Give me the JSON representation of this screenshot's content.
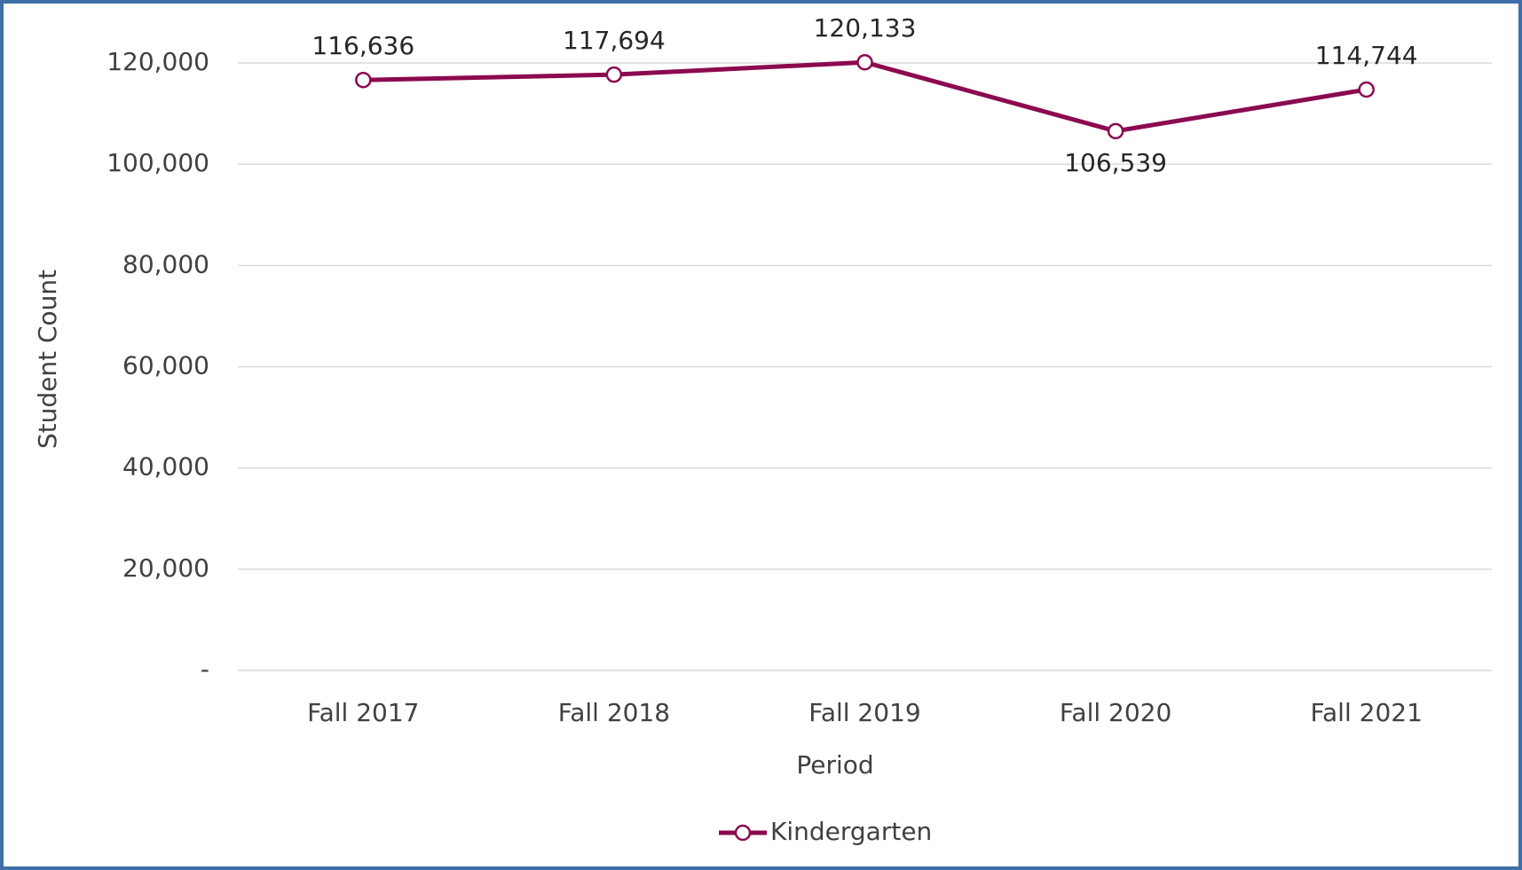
{
  "chart_data": {
    "type": "line",
    "x_label": "Period",
    "y_label": "Student Count",
    "categories": [
      "Fall 2017",
      "Fall 2018",
      "Fall 2019",
      "Fall 2020",
      "Fall 2021"
    ],
    "series": [
      {
        "name": "Kindergarten",
        "color": "#8b0a50",
        "values": [
          116636,
          117694,
          120133,
          106539,
          114744
        ],
        "value_labels": [
          "116,636",
          "117,694",
          "120,133",
          "106,539",
          "114,744"
        ]
      }
    ],
    "ylim": [
      0,
      120000
    ],
    "yticks": [
      {
        "value": 0,
        "label": "-"
      },
      {
        "value": 20000,
        "label": "20,000"
      },
      {
        "value": 40000,
        "label": "40,000"
      },
      {
        "value": 60000,
        "label": "60,000"
      },
      {
        "value": 80000,
        "label": "80,000"
      },
      {
        "value": 100000,
        "label": "100,000"
      },
      {
        "value": 120000,
        "label": "120,000"
      }
    ],
    "grid": true,
    "legend": "bottom"
  }
}
